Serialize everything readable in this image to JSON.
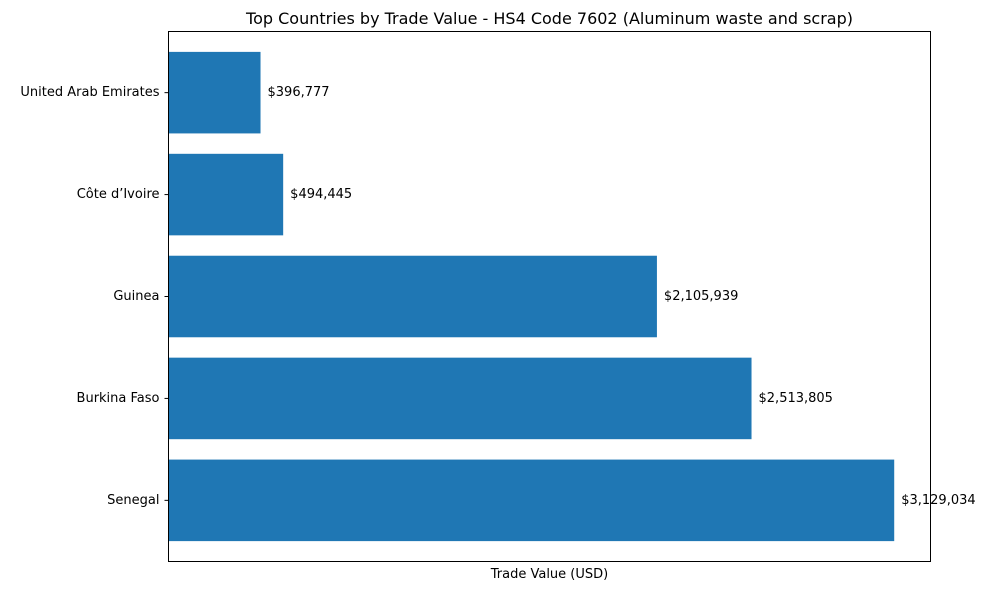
{
  "chart_data": {
    "type": "bar",
    "orientation": "horizontal",
    "title": "Top Countries by Trade Value - HS4 Code 7602 (Aluminum waste and scrap)",
    "xlabel": "Trade Value (USD)",
    "ylabel": "",
    "categories": [
      "Senegal",
      "Burkina Faso",
      "Guinea",
      "Côte d’Ivoire",
      "United Arab Emirates"
    ],
    "values": [
      3129034,
      2513805,
      2105939,
      494445,
      396777
    ],
    "value_labels": [
      "$3,129,034",
      "$2,513,805",
      "$2,105,939",
      "$494,445",
      "$396,777"
    ],
    "xlim": [
      0,
      3285485
    ],
    "bar_color": "#1f77b4",
    "grid": false,
    "legend": "none",
    "x_ticks_visible": false
  }
}
